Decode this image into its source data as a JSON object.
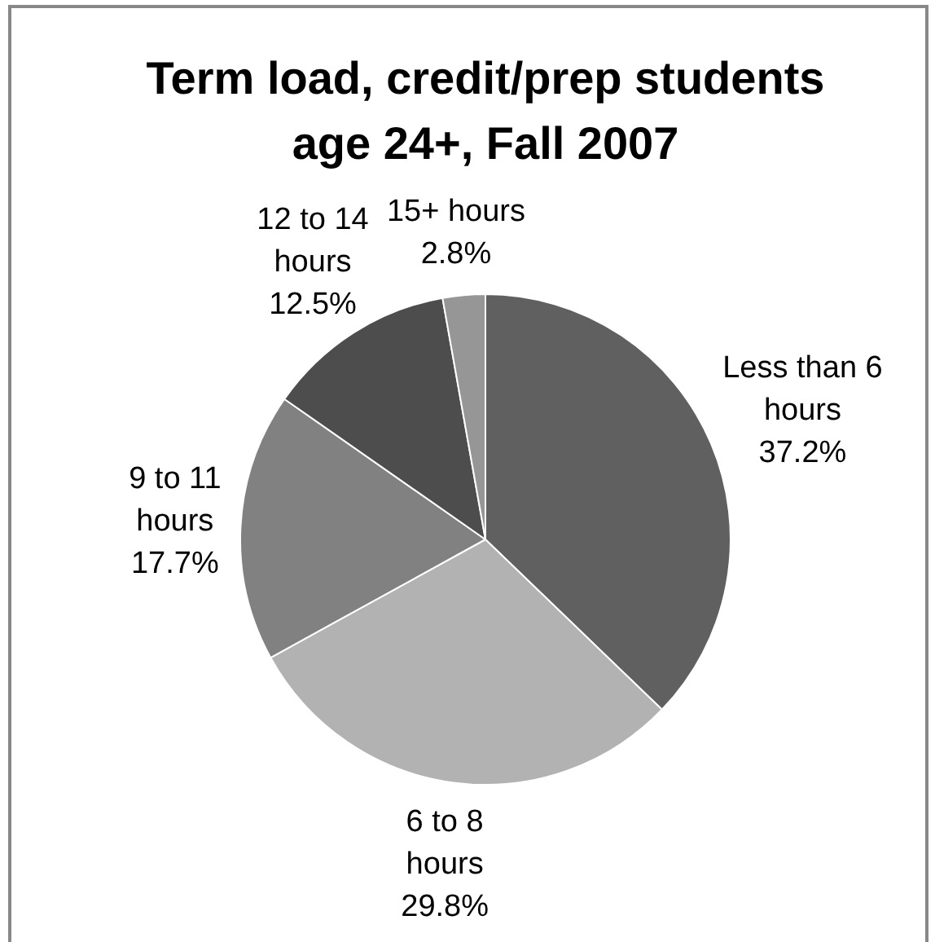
{
  "chart_data": {
    "type": "pie",
    "title": "Term load, credit/prep students age 24+, Fall 2007",
    "categories": [
      "Less than 6 hours",
      "6 to 8 hours",
      "9 to 11 hours",
      "12 to 14 hours",
      "15+ hours"
    ],
    "values": [
      37.2,
      29.8,
      17.7,
      12.5,
      2.8
    ],
    "colors": [
      "#606060",
      "#b2b2b2",
      "#818181",
      "#4d4d4d",
      "#969696"
    ],
    "value_labels": [
      "37.2%",
      "29.8%",
      "17.7%",
      "12.5%",
      "2.8%"
    ],
    "legend": false
  }
}
